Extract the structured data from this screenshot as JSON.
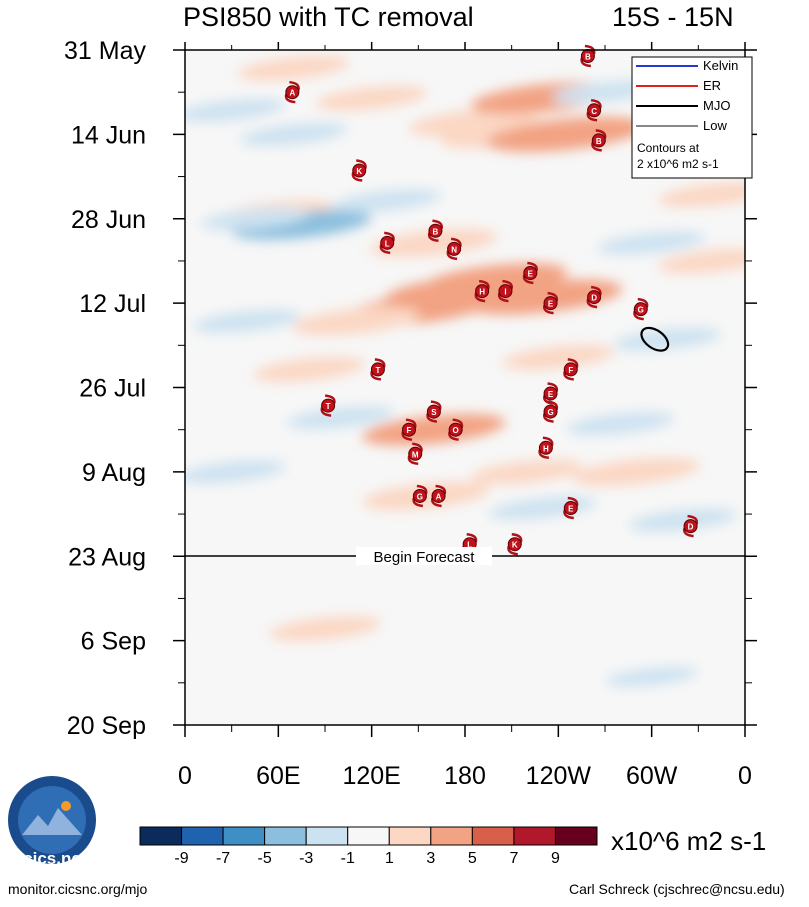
{
  "chart_data": {
    "type": "heatmap",
    "title": "PSI850 with TC removal",
    "subtitle": "15S - 15N",
    "x_tick_labels": [
      "0",
      "60E",
      "120E",
      "180",
      "120W",
      "60W",
      "0"
    ],
    "x_range_deg_east": [
      0,
      360
    ],
    "y_tick_labels": [
      "31 May",
      "14 Jun",
      "28 Jun",
      "12 Jul",
      "26 Jul",
      "9 Aug",
      "23 Aug",
      "6 Sep",
      "20 Sep"
    ],
    "y_range_days_from_31May": [
      0,
      112
    ],
    "forecast_start_day": 84,
    "forecast_label": "Begin Forecast",
    "legend": {
      "entries": [
        {
          "label": "Kelvin",
          "color": "#1f3ad6"
        },
        {
          "label": "ER",
          "color": "#e0201b"
        },
        {
          "label": "MJO",
          "color": "#000000"
        },
        {
          "label": "Low",
          "color": "#888888"
        }
      ],
      "note_line1": "Contours at",
      "note_line2": "2 x10^6 m2 s-1"
    },
    "colorbar": {
      "units": "x10^6 m2 s-1",
      "labels": [
        "-9",
        "-7",
        "-5",
        "-3",
        "-1",
        "1",
        "3",
        "5",
        "7",
        "9"
      ],
      "colors": [
        "#0b2b5c",
        "#1f62ae",
        "#3f8ec6",
        "#8cbfde",
        "#cde2f0",
        "#f7f7f7",
        "#fbd7c4",
        "#f2a383",
        "#d8604b",
        "#b2182b",
        "#67001f"
      ]
    },
    "positive_anomalies": [
      {
        "lon": 70,
        "day": 3,
        "value": 2
      },
      {
        "lon": 120,
        "day": 8,
        "value": 2
      },
      {
        "lon": 185,
        "day": 12,
        "value": 3
      },
      {
        "lon": 230,
        "day": 8,
        "value": 4
      },
      {
        "lon": 205,
        "day": 14,
        "value": 3
      },
      {
        "lon": 245,
        "day": 14,
        "value": 5
      },
      {
        "lon": 60,
        "day": 27,
        "value": 2
      },
      {
        "lon": 160,
        "day": 32,
        "value": 3
      },
      {
        "lon": 200,
        "day": 38,
        "value": 4
      },
      {
        "lon": 230,
        "day": 41,
        "value": 5
      },
      {
        "lon": 150,
        "day": 43,
        "value": 4
      },
      {
        "lon": 175,
        "day": 40,
        "value": 4
      },
      {
        "lon": 110,
        "day": 45,
        "value": 3
      },
      {
        "lon": 80,
        "day": 53,
        "value": 2
      },
      {
        "lon": 240,
        "day": 51,
        "value": 2
      },
      {
        "lon": 160,
        "day": 63,
        "value": 4
      },
      {
        "lon": 155,
        "day": 74,
        "value": 3
      },
      {
        "lon": 220,
        "day": 70,
        "value": 2
      },
      {
        "lon": 290,
        "day": 70,
        "value": 3
      },
      {
        "lon": 340,
        "day": 35,
        "value": 2
      },
      {
        "lon": 340,
        "day": 24,
        "value": 2
      },
      {
        "lon": 90,
        "day": 96,
        "value": 2
      },
      {
        "lon": 200,
        "day": 100,
        "value": 1
      }
    ],
    "negative_anomalies": [
      {
        "lon": 30,
        "day": 10,
        "value": -2
      },
      {
        "lon": 70,
        "day": 14,
        "value": -2
      },
      {
        "lon": 270,
        "day": 7,
        "value": -2
      },
      {
        "lon": 75,
        "day": 29,
        "value": -4
      },
      {
        "lon": 45,
        "day": 28,
        "value": -2
      },
      {
        "lon": 130,
        "day": 25,
        "value": -2
      },
      {
        "lon": 300,
        "day": 32,
        "value": -2
      },
      {
        "lon": 40,
        "day": 45,
        "value": -2
      },
      {
        "lon": 310,
        "day": 48,
        "value": -2
      },
      {
        "lon": 100,
        "day": 61,
        "value": -2
      },
      {
        "lon": 280,
        "day": 62,
        "value": -2
      },
      {
        "lon": 30,
        "day": 70,
        "value": -2
      },
      {
        "lon": 230,
        "day": 76,
        "value": -2
      },
      {
        "lon": 320,
        "day": 78,
        "value": -2
      },
      {
        "lon": 300,
        "day": 104,
        "value": -1
      }
    ],
    "mjo_contour": {
      "lon": 302,
      "day": 48
    },
    "tropical_cyclones": [
      {
        "letter": "B",
        "lon": 259,
        "day": 1
      },
      {
        "letter": "A",
        "lon": 69,
        "day": 7
      },
      {
        "letter": "C",
        "lon": 263,
        "day": 10
      },
      {
        "letter": "B",
        "lon": 266,
        "day": 15
      },
      {
        "letter": "K",
        "lon": 112,
        "day": 20
      },
      {
        "letter": "B",
        "lon": 161,
        "day": 30
      },
      {
        "letter": "L",
        "lon": 130,
        "day": 32
      },
      {
        "letter": "N",
        "lon": 173,
        "day": 33
      },
      {
        "letter": "E",
        "lon": 222,
        "day": 37
      },
      {
        "letter": "H",
        "lon": 191,
        "day": 40
      },
      {
        "letter": "I",
        "lon": 206,
        "day": 40
      },
      {
        "letter": "D",
        "lon": 263,
        "day": 41
      },
      {
        "letter": "E",
        "lon": 235,
        "day": 42
      },
      {
        "letter": "G",
        "lon": 293,
        "day": 43
      },
      {
        "letter": "F",
        "lon": 248,
        "day": 53
      },
      {
        "letter": "T",
        "lon": 124,
        "day": 53
      },
      {
        "letter": "E",
        "lon": 235,
        "day": 57
      },
      {
        "letter": "T",
        "lon": 92,
        "day": 59
      },
      {
        "letter": "G",
        "lon": 235,
        "day": 60
      },
      {
        "letter": "S",
        "lon": 160,
        "day": 60
      },
      {
        "letter": "F",
        "lon": 144,
        "day": 63
      },
      {
        "letter": "O",
        "lon": 174,
        "day": 63
      },
      {
        "letter": "H",
        "lon": 232,
        "day": 66
      },
      {
        "letter": "M",
        "lon": 148,
        "day": 67
      },
      {
        "letter": "G",
        "lon": 151,
        "day": 74
      },
      {
        "letter": "A",
        "lon": 163,
        "day": 74
      },
      {
        "letter": "E",
        "lon": 248,
        "day": 76
      },
      {
        "letter": "D",
        "lon": 325,
        "day": 79
      },
      {
        "letter": "L",
        "lon": 183,
        "day": 82
      },
      {
        "letter": "K",
        "lon": 212,
        "day": 82
      }
    ]
  },
  "footer": {
    "left": "monitor.cicsnc.org/mjo",
    "right": "Carl Schreck (cjschrec@ncsu.edu)",
    "logo_text": "cics.nc"
  }
}
